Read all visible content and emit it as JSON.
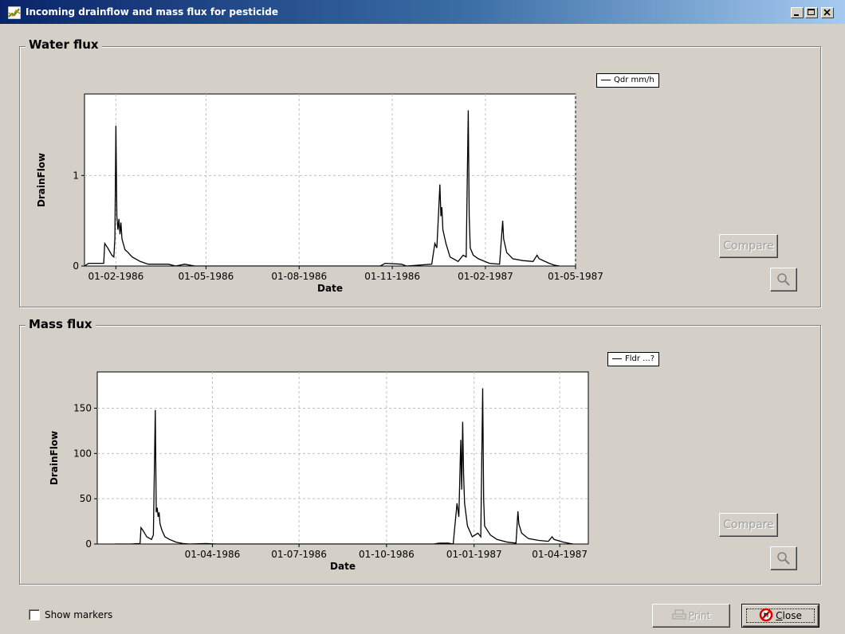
{
  "window": {
    "title": "Incoming drainflow and mass flux for pesticide",
    "buttons": [
      "minimize",
      "maximize",
      "close"
    ]
  },
  "water_flux": {
    "group_title": "Water flux",
    "legend": "Qdr mm/h",
    "compare_label": "Compare"
  },
  "mass_flux": {
    "group_title": "Mass flux",
    "legend": "Fldr ...?",
    "compare_label": "Compare"
  },
  "footer": {
    "show_markers_label": "Show markers",
    "show_markers_checked": false,
    "print_label": "Print",
    "close_label": "Close"
  },
  "icons": {
    "app": "app-chart-icon",
    "zoom": "magnifier-icon",
    "print": "printer-icon",
    "close": "stop-icon"
  },
  "colors": {
    "title_bar_start": "#0a246a",
    "title_bar_end": "#a6caf0",
    "line": "#000000",
    "grid": "#c0c0c0",
    "close_icon": "#e00000"
  },
  "chart_data": [
    {
      "type": "line",
      "title": "",
      "xlabel": "Date",
      "ylabel": "DrainFlow",
      "x_ticks": [
        "01-02-1986",
        "01-05-1986",
        "01-08-1986",
        "01-11-1986",
        "01-02-1987",
        "01-05-1987"
      ],
      "y_ticks": [
        0,
        1
      ],
      "xlim": [
        "01-01-1986",
        "01-05-1987"
      ],
      "ylim": [
        0,
        1.9
      ],
      "grid": true,
      "legend_position": "top-right",
      "series": [
        {
          "name": "Qdr mm/h",
          "points": [
            [
              "01-01-1986",
              0
            ],
            [
              "05-01-1986",
              0.03
            ],
            [
              "20-01-1986",
              0.03
            ],
            [
              "21-01-1986",
              0.25
            ],
            [
              "24-01-1986",
              0.2
            ],
            [
              "28-01-1986",
              0.12
            ],
            [
              "30-01-1986",
              0.1
            ],
            [
              "31-01-1986",
              0.3
            ],
            [
              "01-02-1986",
              1.55
            ],
            [
              "02-02-1986",
              0.55
            ],
            [
              "03-02-1986",
              0.4
            ],
            [
              "04-02-1986",
              0.52
            ],
            [
              "05-02-1986",
              0.35
            ],
            [
              "06-02-1986",
              0.48
            ],
            [
              "07-02-1986",
              0.3
            ],
            [
              "10-02-1986",
              0.18
            ],
            [
              "13-02-1986",
              0.15
            ],
            [
              "17-02-1986",
              0.1
            ],
            [
              "25-02-1986",
              0.05
            ],
            [
              "05-03-1986",
              0.02
            ],
            [
              "25-03-1986",
              0.02
            ],
            [
              "01-04-1986",
              0
            ],
            [
              "10-04-1986",
              0.02
            ],
            [
              "20-04-1986",
              0
            ],
            [
              "20-10-1986",
              0
            ],
            [
              "25-10-1986",
              0.03
            ],
            [
              "10-11-1986",
              0.02
            ],
            [
              "15-11-1986",
              0
            ],
            [
              "10-12-1986",
              0.02
            ],
            [
              "13-12-1986",
              0.25
            ],
            [
              "15-12-1986",
              0.2
            ],
            [
              "17-12-1986",
              0.65
            ],
            [
              "18-12-1986",
              0.9
            ],
            [
              "19-12-1986",
              0.55
            ],
            [
              "20-12-1986",
              0.65
            ],
            [
              "21-12-1986",
              0.4
            ],
            [
              "24-12-1986",
              0.25
            ],
            [
              "28-12-1986",
              0.1
            ],
            [
              "05-01-1987",
              0.05
            ],
            [
              "10-01-1987",
              0.12
            ],
            [
              "13-01-1987",
              0.1
            ],
            [
              "15-01-1987",
              1.72
            ],
            [
              "16-01-1987",
              0.55
            ],
            [
              "17-01-1987",
              0.2
            ],
            [
              "20-01-1987",
              0.12
            ],
            [
              "25-01-1987",
              0.08
            ],
            [
              "05-02-1987",
              0.03
            ],
            [
              "15-02-1987",
              0.02
            ],
            [
              "18-02-1987",
              0.5
            ],
            [
              "19-02-1987",
              0.3
            ],
            [
              "22-02-1987",
              0.15
            ],
            [
              "28-02-1987",
              0.08
            ],
            [
              "10-03-1987",
              0.06
            ],
            [
              "20-03-1987",
              0.05
            ],
            [
              "24-03-1987",
              0.12
            ],
            [
              "26-03-1987",
              0.08
            ],
            [
              "05-04-1987",
              0.03
            ],
            [
              "10-04-1987",
              0.01
            ],
            [
              "15-04-1987",
              0
            ]
          ]
        }
      ]
    },
    {
      "type": "line",
      "title": "",
      "xlabel": "Date",
      "ylabel": "DrainFlow",
      "x_ticks": [
        "01-04-1986",
        "01-07-1986",
        "01-10-1986",
        "01-01-1987",
        "01-04-1987"
      ],
      "y_ticks": [
        0,
        50,
        100,
        150
      ],
      "xlim": [
        "01-12-1985",
        "01-05-1987"
      ],
      "ylim": [
        0,
        190
      ],
      "grid": true,
      "legend_position": "top-right",
      "series": [
        {
          "name": "Fldr ...?",
          "points": [
            [
              "20-12-1985",
              0
            ],
            [
              "05-01-1986",
              0
            ],
            [
              "15-01-1986",
              0.5
            ],
            [
              "16-01-1986",
              18
            ],
            [
              "18-01-1986",
              15
            ],
            [
              "22-01-1986",
              8
            ],
            [
              "27-01-1986",
              5
            ],
            [
              "29-01-1986",
              10
            ],
            [
              "31-01-1986",
              148
            ],
            [
              "01-02-1986",
              35
            ],
            [
              "02-02-1986",
              40
            ],
            [
              "03-02-1986",
              30
            ],
            [
              "04-02-1986",
              35
            ],
            [
              "05-02-1986",
              22
            ],
            [
              "07-02-1986",
              15
            ],
            [
              "10-02-1986",
              8
            ],
            [
              "15-02-1986",
              5
            ],
            [
              "22-02-1986",
              2
            ],
            [
              "01-03-1986",
              0.5
            ],
            [
              "08-03-1986",
              0
            ],
            [
              "25-03-1986",
              0.5
            ],
            [
              "05-04-1986",
              0
            ],
            [
              "10-10-1986",
              0
            ],
            [
              "20-11-1986",
              0
            ],
            [
              "25-11-1986",
              1
            ],
            [
              "05-12-1986",
              1
            ],
            [
              "10-12-1986",
              0
            ],
            [
              "14-12-1986",
              45
            ],
            [
              "16-12-1986",
              30
            ],
            [
              "18-12-1986",
              115
            ],
            [
              "19-12-1986",
              60
            ],
            [
              "20-12-1986",
              135
            ],
            [
              "21-12-1986",
              75
            ],
            [
              "22-12-1986",
              45
            ],
            [
              "25-12-1986",
              20
            ],
            [
              "30-12-1986",
              8
            ],
            [
              "05-01-1987",
              12
            ],
            [
              "08-01-1987",
              8
            ],
            [
              "10-01-1987",
              172
            ],
            [
              "11-01-1987",
              50
            ],
            [
              "12-01-1987",
              20
            ],
            [
              "18-01-1987",
              10
            ],
            [
              "25-01-1987",
              5
            ],
            [
              "05-02-1987",
              2
            ],
            [
              "14-02-1987",
              1
            ],
            [
              "16-02-1987",
              36
            ],
            [
              "17-02-1987",
              22
            ],
            [
              "20-02-1987",
              12
            ],
            [
              "27-02-1987",
              6
            ],
            [
              "10-03-1987",
              4
            ],
            [
              "20-03-1987",
              3
            ],
            [
              "24-03-1987",
              8
            ],
            [
              "26-03-1987",
              5
            ],
            [
              "05-04-1987",
              2
            ],
            [
              "12-04-1987",
              0.5
            ],
            [
              "15-04-1987",
              0
            ]
          ]
        }
      ]
    }
  ]
}
